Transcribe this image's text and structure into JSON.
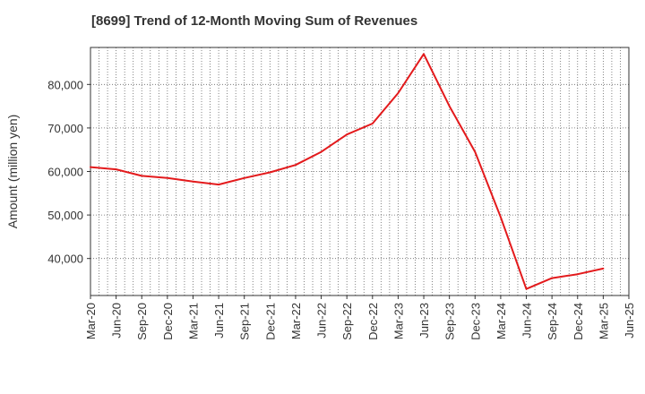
{
  "chart_data": {
    "type": "line",
    "title": "[8699]  Trend of 12-Month Moving Sum of Revenues",
    "xlabel": "",
    "ylabel": "Amount (million yen)",
    "x_ticks": [
      "Mar-20",
      "Jun-20",
      "Sep-20",
      "Dec-20",
      "Mar-21",
      "Jun-21",
      "Sep-21",
      "Dec-21",
      "Mar-22",
      "Jun-22",
      "Sep-22",
      "Dec-22",
      "Mar-23",
      "Jun-23",
      "Sep-23",
      "Dec-23",
      "Mar-24",
      "Jun-24",
      "Sep-24",
      "Dec-24",
      "Mar-25",
      "Jun-25"
    ],
    "y_ticks": [
      40000,
      50000,
      60000,
      70000,
      80000
    ],
    "y_tick_labels": [
      "40,000",
      "50,000",
      "60,000",
      "70,000",
      "80,000"
    ],
    "ylim": [
      31500,
      88500
    ],
    "grid": true,
    "series": [
      {
        "color": "#e31a1c",
        "x": [
          "Mar-20",
          "Jun-20",
          "Sep-20",
          "Dec-20",
          "Mar-21",
          "Jun-21",
          "Sep-21",
          "Dec-21",
          "Mar-22",
          "Jun-22",
          "Sep-22",
          "Dec-22",
          "Mar-23",
          "Jun-23",
          "Sep-23",
          "Dec-23",
          "Mar-24",
          "Jun-24",
          "Sep-24",
          "Dec-24",
          "Mar-25"
        ],
        "values": [
          61000,
          60500,
          59000,
          58500,
          57700,
          57000,
          58500,
          59800,
          61500,
          64500,
          68500,
          71000,
          78000,
          87000,
          75000,
          64500,
          49500,
          33000,
          35500,
          36400,
          37700
        ]
      }
    ]
  }
}
